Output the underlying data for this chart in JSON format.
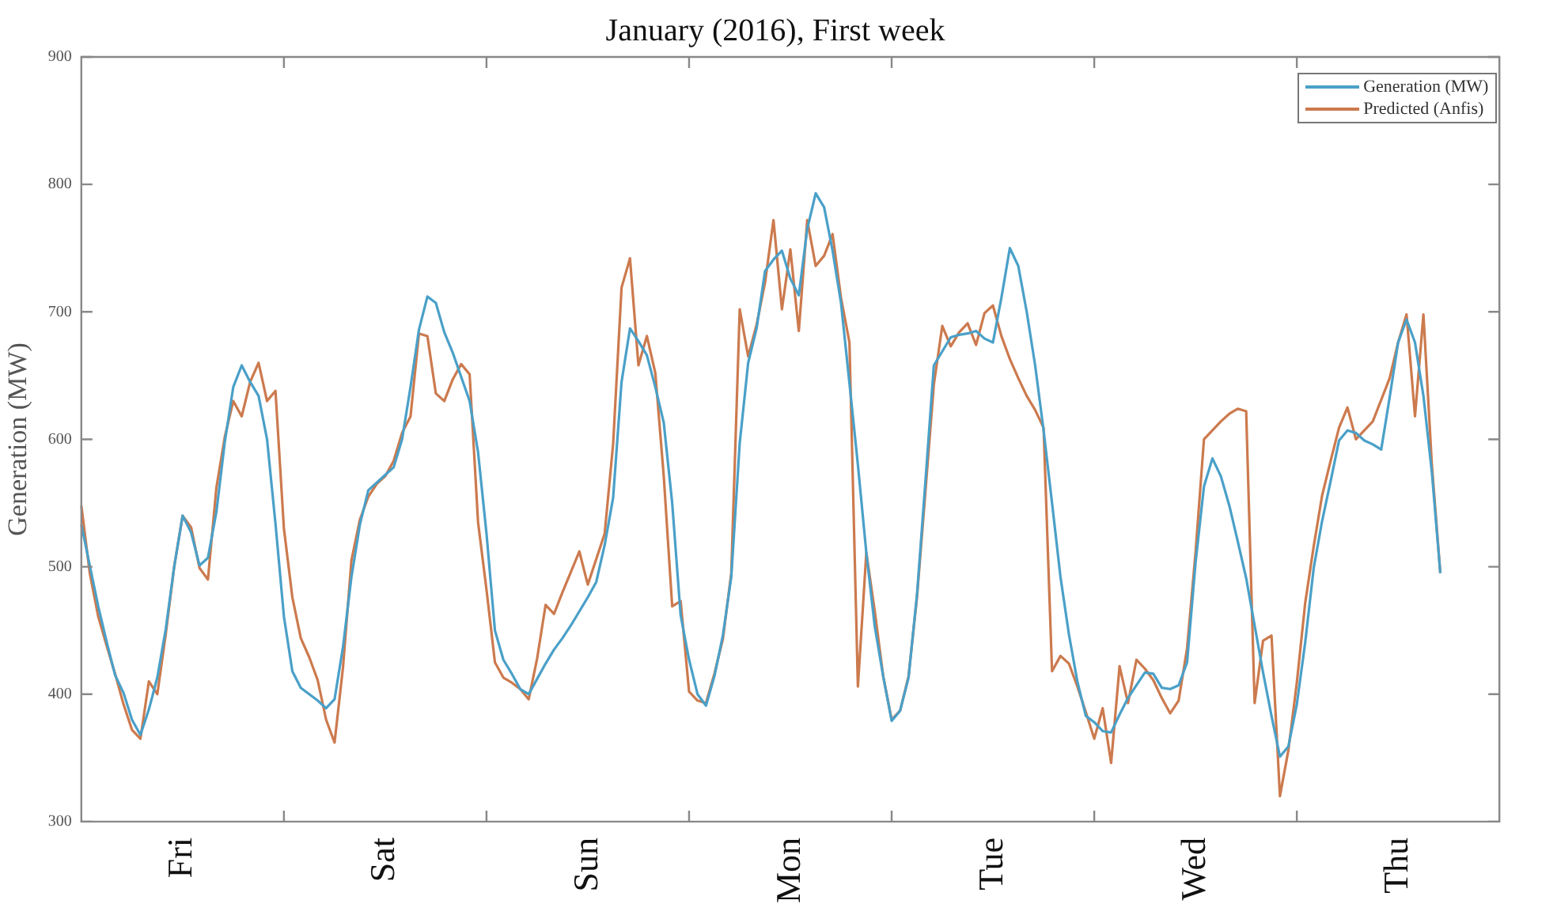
{
  "chart_data": {
    "type": "line",
    "title": "January (2016), First week",
    "ylabel": "Generation (MW)",
    "categories": [
      null,
      null,
      null,
      null,
      null,
      null,
      null,
      null,
      null,
      null,
      null,
      null,
      "Fri",
      null,
      null,
      null,
      null,
      null,
      null,
      null,
      null,
      null,
      null,
      null,
      null,
      null,
      null,
      null,
      null,
      null,
      null,
      null,
      null,
      null,
      null,
      null,
      "Sat",
      null,
      null,
      null,
      null,
      null,
      null,
      null,
      null,
      null,
      null,
      null,
      null,
      null,
      null,
      null,
      null,
      null,
      null,
      null,
      null,
      null,
      null,
      null,
      "Sun",
      null,
      null,
      null,
      null,
      null,
      null,
      null,
      null,
      null,
      null,
      null,
      null,
      null,
      null,
      null,
      null,
      null,
      null,
      null,
      null,
      null,
      null,
      null,
      "Mon",
      null,
      null,
      null,
      null,
      null,
      null,
      null,
      null,
      null,
      null,
      null,
      null,
      null,
      null,
      null,
      null,
      null,
      null,
      null,
      null,
      null,
      null,
      null,
      "Tue",
      null,
      null,
      null,
      null,
      null,
      null,
      null,
      null,
      null,
      null,
      null,
      null,
      null,
      null,
      null,
      null,
      null,
      null,
      null,
      null,
      null,
      null,
      null,
      "Wed",
      null,
      null,
      null,
      null,
      null,
      null,
      null,
      null,
      null,
      null,
      null,
      null,
      null,
      null,
      null,
      null,
      null,
      null,
      null,
      null,
      null,
      null,
      null,
      "Thu",
      null,
      null,
      null,
      null,
      null,
      null,
      null,
      null,
      null,
      null,
      null,
      null
    ],
    "ylim": [
      300,
      900
    ],
    "yticks": [
      300,
      400,
      500,
      600,
      700,
      800,
      900
    ],
    "legend": "top right",
    "marker": "none",
    "line_style": "solid",
    "grid": false,
    "series": [
      {
        "name": "Generation (MW)",
        "color": "#4aa0c8",
        "values": [
          533,
          501,
          469,
          441,
          415,
          401,
          380,
          368,
          388,
          413,
          451,
          500,
          540,
          527,
          501,
          507,
          543,
          598,
          641,
          658,
          645,
          634,
          600,
          534,
          461,
          418,
          405,
          400,
          395,
          389,
          396,
          437,
          492,
          533,
          560,
          566,
          572,
          578,
          600,
          641,
          686,
          712,
          707,
          684,
          668,
          649,
          630,
          590,
          526,
          450,
          427,
          416,
          404,
          400,
          412,
          424,
          435,
          444,
          454,
          465,
          476,
          488,
          517,
          554,
          645,
          687,
          677,
          666,
          641,
          613,
          550,
          462,
          427,
          400,
          391,
          414,
          446,
          492,
          597,
          660,
          687,
          732,
          741,
          748,
          726,
          713,
          765,
          793,
          782,
          748,
          707,
          644,
          580,
          511,
          453,
          414,
          379,
          387,
          413,
          478,
          567,
          658,
          669,
          680,
          682,
          683,
          685,
          679,
          676,
          711,
          750,
          736,
          700,
          658,
          607,
          550,
          492,
          447,
          410,
          383,
          378,
          371,
          370,
          384,
          397,
          407,
          417,
          416,
          405,
          404,
          407,
          425,
          503,
          563,
          585,
          571,
          548,
          520,
          491,
          454,
          417,
          383,
          351,
          359,
          392,
          441,
          499,
          536,
          567,
          599,
          607,
          605,
          599,
          596,
          592,
          633,
          676,
          694,
          676,
          634,
          574,
          495,
          null,
          null,
          null,
          null,
          null,
          null,
          null
        ]
      },
      {
        "name": "Predicted (Anfis)",
        "color": "#cc7a4e",
        "values": [
          548,
          495,
          461,
          438,
          416,
          392,
          372,
          365,
          410,
          400,
          447,
          500,
          540,
          531,
          499,
          490,
          562,
          602,
          630,
          618,
          645,
          660,
          630,
          638,
          530,
          476,
          444,
          429,
          411,
          380,
          362,
          421,
          505,
          537,
          555,
          565,
          571,
          583,
          605,
          618,
          683,
          681,
          636,
          630,
          647,
          659,
          651,
          535,
          482,
          425,
          413,
          409,
          404,
          396,
          428,
          470,
          463,
          480,
          496,
          512,
          486,
          506,
          526,
          596,
          719,
          742,
          658,
          681,
          652,
          571,
          469,
          473,
          402,
          395,
          393,
          416,
          443,
          495,
          702,
          665,
          690,
          723,
          772,
          702,
          749,
          685,
          772,
          736,
          744,
          761,
          711,
          676,
          406,
          511,
          465,
          414,
          380,
          387,
          414,
          476,
          559,
          643,
          689,
          673,
          684,
          691,
          674,
          699,
          705,
          681,
          663,
          648,
          634,
          623,
          609,
          418,
          430,
          424,
          406,
          386,
          365,
          389,
          346,
          422,
          393,
          427,
          420,
          411,
          397,
          385,
          395,
          436,
          511,
          600,
          607,
          614,
          620,
          624,
          622,
          393,
          442,
          446,
          320,
          356,
          409,
          472,
          516,
          556,
          583,
          609,
          625,
          600,
          607,
          614,
          631,
          648,
          676,
          698,
          618,
          698,
          580,
          495,
          null,
          null,
          null,
          null,
          null,
          null,
          null
        ]
      }
    ]
  }
}
